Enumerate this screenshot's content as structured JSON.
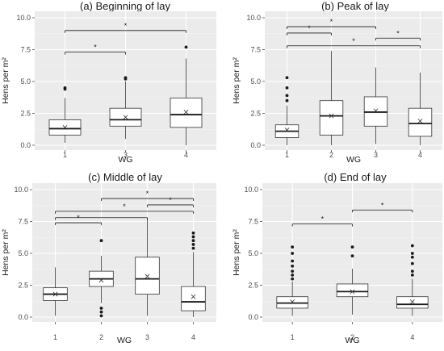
{
  "chart_data": [
    {
      "type": "box",
      "title": "(a) Beginning of lay",
      "xlabel": "WG",
      "ylabel": "Hens per m²",
      "ylim": [
        0,
        10
      ],
      "yticks": [
        "0.0",
        "2.5",
        "5.0",
        "7.5",
        "10.0"
      ],
      "categories": [
        "1",
        "3",
        "4"
      ],
      "boxes": [
        {
          "group": "1",
          "min": 0.2,
          "q1": 0.8,
          "median": 1.3,
          "q3": 2.0,
          "max": 3.7,
          "mean": 1.4,
          "outliers": [
            4.4,
            4.5
          ]
        },
        {
          "group": "3",
          "min": 0.5,
          "q1": 1.5,
          "median": 2.0,
          "q3": 2.9,
          "max": 5.0,
          "mean": 2.2,
          "outliers": [
            5.2,
            5.3
          ]
        },
        {
          "group": "4",
          "min": 0.0,
          "q1": 1.4,
          "median": 2.4,
          "q3": 3.7,
          "max": 6.8,
          "mean": 2.6,
          "outliers": [
            7.7
          ]
        }
      ],
      "brackets": [
        {
          "from": "1",
          "to": "3",
          "y": 7.3,
          "label": "*"
        },
        {
          "from": "1",
          "to": "4",
          "y": 9.0,
          "label": "*"
        }
      ]
    },
    {
      "type": "box",
      "title": "(b) Peak of lay",
      "xlabel": "WG",
      "ylabel": "Hens per m²",
      "ylim": [
        0,
        10
      ],
      "yticks": [
        "0.0",
        "2.5",
        "5.0",
        "7.5",
        "10.0"
      ],
      "categories": [
        "1",
        "2",
        "3",
        "4"
      ],
      "boxes": [
        {
          "group": "1",
          "min": 0.0,
          "q1": 0.6,
          "median": 1.1,
          "q3": 1.6,
          "max": 3.1,
          "mean": 1.2,
          "outliers": [
            3.5,
            3.9,
            4.5,
            5.3
          ]
        },
        {
          "group": "2",
          "min": 0.0,
          "q1": 0.8,
          "median": 2.3,
          "q3": 3.5,
          "max": 7.4,
          "mean": 2.3,
          "outliers": []
        },
        {
          "group": "3",
          "min": 0.1,
          "q1": 1.5,
          "median": 2.6,
          "q3": 3.8,
          "max": 6.1,
          "mean": 2.7,
          "outliers": []
        },
        {
          "group": "4",
          "min": 0.0,
          "q1": 0.7,
          "median": 1.7,
          "q3": 2.9,
          "max": 5.7,
          "mean": 1.9,
          "outliers": []
        }
      ],
      "brackets": [
        {
          "from": "1",
          "to": "2",
          "y": 8.8,
          "label": "*"
        },
        {
          "from": "1",
          "to": "3",
          "y": 9.3,
          "label": "*"
        },
        {
          "from": "3",
          "to": "4",
          "y": 8.4,
          "label": "*"
        },
        {
          "from": "1",
          "to": "4",
          "y": 7.8,
          "label": "*"
        }
      ]
    },
    {
      "type": "box",
      "title": "(c) Middle of lay",
      "xlabel": "WG",
      "ylabel": "Hens per m²",
      "ylim": [
        0,
        10
      ],
      "yticks": [
        "0.0",
        "2.5",
        "5.0",
        "7.5",
        "10.0"
      ],
      "categories": [
        "1",
        "2",
        "3",
        "4"
      ],
      "boxes": [
        {
          "group": "1",
          "min": 0.1,
          "q1": 1.3,
          "median": 1.8,
          "q3": 2.3,
          "max": 3.9,
          "mean": 1.8,
          "outliers": []
        },
        {
          "group": "2",
          "min": 1.1,
          "q1": 2.4,
          "median": 3.0,
          "q3": 3.6,
          "max": 4.8,
          "mean": 2.9,
          "outliers": [
            0.1,
            0.4,
            0.7,
            6.0
          ]
        },
        {
          "group": "3",
          "min": 0.1,
          "q1": 1.8,
          "median": 3.0,
          "q3": 4.7,
          "max": 7.8,
          "mean": 3.2,
          "outliers": []
        },
        {
          "group": "4",
          "min": 0.0,
          "q1": 0.5,
          "median": 1.2,
          "q3": 2.4,
          "max": 5.1,
          "mean": 1.6,
          "outliers": [
            5.4,
            5.7,
            6.0,
            6.3,
            6.6
          ]
        }
      ],
      "brackets": [
        {
          "from": "1",
          "to": "2",
          "y": 7.4,
          "label": "*"
        },
        {
          "from": "1",
          "to": "3",
          "y": 7.8,
          "label": ""
        },
        {
          "from": "1",
          "to": "4",
          "y": 8.3,
          "label": "*"
        },
        {
          "from": "3",
          "to": "4",
          "y": 8.8,
          "label": "*"
        },
        {
          "from": "2",
          "to": "4",
          "y": 9.3,
          "label": "*"
        }
      ]
    },
    {
      "type": "box",
      "title": "(d) End of lay",
      "xlabel": "WG",
      "ylabel": "Hens per m²",
      "ylim": [
        0,
        10
      ],
      "yticks": [
        "0.0",
        "2.5",
        "5.0",
        "7.5",
        "10.0"
      ],
      "categories": [
        "1",
        "2",
        "4"
      ],
      "boxes": [
        {
          "group": "1",
          "min": 0.1,
          "q1": 0.7,
          "median": 1.1,
          "q3": 1.6,
          "max": 2.8,
          "mean": 1.2,
          "outliers": [
            3.0,
            3.3,
            3.6,
            4.0,
            4.4,
            5.0,
            5.5
          ]
        },
        {
          "group": "2",
          "min": 0.2,
          "q1": 1.6,
          "median": 2.0,
          "q3": 2.6,
          "max": 3.8,
          "mean": 2.0,
          "outliers": [
            4.8,
            5.5
          ]
        },
        {
          "group": "4",
          "min": 0.1,
          "q1": 0.7,
          "median": 1.0,
          "q3": 1.6,
          "max": 3.0,
          "mean": 1.2,
          "outliers": [
            3.3,
            3.6,
            4.2,
            4.7,
            5.0,
            5.6
          ]
        }
      ],
      "brackets": [
        {
          "from": "1",
          "to": "2",
          "y": 7.3,
          "label": "*"
        },
        {
          "from": "2",
          "to": "4",
          "y": 8.4,
          "label": "*"
        }
      ]
    }
  ]
}
